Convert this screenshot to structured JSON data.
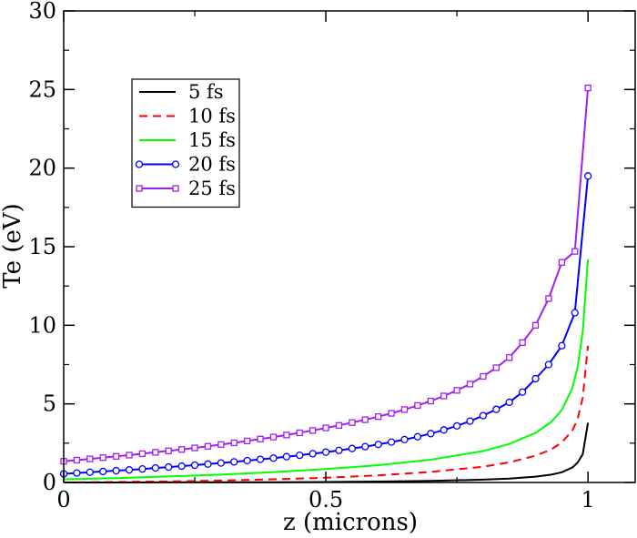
{
  "chart_data": {
    "type": "line",
    "xlabel": "z (microns)",
    "ylabel": "Te (eV)",
    "xlim": [
      0,
      1.09
    ],
    "ylim": [
      0,
      30
    ],
    "xticks": [
      {
        "value": 0,
        "label": "0"
      },
      {
        "value": 0.5,
        "label": "0.5"
      },
      {
        "value": 1,
        "label": "1"
      }
    ],
    "yticks": [
      {
        "value": 0,
        "label": "0"
      },
      {
        "value": 5,
        "label": "5"
      },
      {
        "value": 10,
        "label": "10"
      },
      {
        "value": 15,
        "label": "15"
      },
      {
        "value": 20,
        "label": "20"
      },
      {
        "value": 25,
        "label": "25"
      },
      {
        "value": 30,
        "label": "30"
      }
    ],
    "legend_position": "top-left",
    "grid": false,
    "series": [
      {
        "name": "5 fs",
        "color": "#000000",
        "dash": "solid",
        "marker": "none",
        "x": [
          0,
          0.1,
          0.2,
          0.3,
          0.4,
          0.5,
          0.6,
          0.7,
          0.8,
          0.85,
          0.9,
          0.93,
          0.95,
          0.97,
          0.98,
          0.99,
          1.0
        ],
        "y": [
          0.0,
          0.0,
          0.01,
          0.01,
          0.02,
          0.03,
          0.06,
          0.1,
          0.18,
          0.25,
          0.37,
          0.5,
          0.65,
          0.95,
          1.25,
          1.8,
          3.8
        ]
      },
      {
        "name": "10 fs",
        "color": "#ff0000",
        "dash": "dashed",
        "marker": "none",
        "x": [
          0,
          0.1,
          0.2,
          0.3,
          0.4,
          0.5,
          0.6,
          0.7,
          0.8,
          0.85,
          0.9,
          0.93,
          0.95,
          0.97,
          0.98,
          0.99,
          1.0
        ],
        "y": [
          0.0,
          0.03,
          0.07,
          0.12,
          0.2,
          0.3,
          0.45,
          0.67,
          1.0,
          1.28,
          1.7,
          2.1,
          2.55,
          3.3,
          4.0,
          5.4,
          8.7
        ]
      },
      {
        "name": "15 fs",
        "color": "#00ff00",
        "dash": "solid",
        "marker": "none",
        "x": [
          0,
          0.1,
          0.2,
          0.3,
          0.4,
          0.5,
          0.6,
          0.7,
          0.8,
          0.85,
          0.9,
          0.93,
          0.95,
          0.97,
          0.98,
          0.99,
          1.0
        ],
        "y": [
          0.2,
          0.28,
          0.38,
          0.5,
          0.66,
          0.85,
          1.1,
          1.45,
          2.0,
          2.45,
          3.15,
          3.85,
          4.6,
          6.0,
          7.3,
          9.6,
          14.2
        ]
      },
      {
        "name": "20 fs",
        "color": "#0000ff",
        "dash": "solid",
        "marker": "circle",
        "x": [
          0,
          0.025,
          0.05,
          0.075,
          0.1,
          0.125,
          0.15,
          0.175,
          0.2,
          0.225,
          0.25,
          0.275,
          0.3,
          0.325,
          0.35,
          0.375,
          0.4,
          0.425,
          0.45,
          0.475,
          0.5,
          0.525,
          0.55,
          0.575,
          0.6,
          0.625,
          0.65,
          0.675,
          0.7,
          0.725,
          0.75,
          0.775,
          0.8,
          0.825,
          0.85,
          0.875,
          0.9,
          0.925,
          0.95,
          0.975,
          1.0
        ],
        "y": [
          0.55,
          0.6,
          0.65,
          0.7,
          0.75,
          0.8,
          0.86,
          0.92,
          0.98,
          1.04,
          1.1,
          1.17,
          1.24,
          1.31,
          1.39,
          1.47,
          1.55,
          1.64,
          1.73,
          1.83,
          1.93,
          2.04,
          2.16,
          2.28,
          2.42,
          2.57,
          2.73,
          2.91,
          3.11,
          3.34,
          3.6,
          3.9,
          4.25,
          4.65,
          5.1,
          5.75,
          6.6,
          7.5,
          8.7,
          10.8,
          19.5
        ]
      },
      {
        "name": "25 fs",
        "color": "#a020f0",
        "dash": "solid",
        "marker": "square",
        "x": [
          0,
          0.025,
          0.05,
          0.075,
          0.1,
          0.125,
          0.15,
          0.175,
          0.2,
          0.225,
          0.25,
          0.275,
          0.3,
          0.325,
          0.35,
          0.375,
          0.4,
          0.425,
          0.45,
          0.475,
          0.5,
          0.525,
          0.55,
          0.575,
          0.6,
          0.625,
          0.65,
          0.675,
          0.7,
          0.725,
          0.75,
          0.775,
          0.8,
          0.825,
          0.85,
          0.875,
          0.9,
          0.925,
          0.95,
          0.975,
          1.0
        ],
        "y": [
          1.35,
          1.42,
          1.5,
          1.58,
          1.66,
          1.74,
          1.83,
          1.92,
          2.01,
          2.1,
          2.2,
          2.3,
          2.41,
          2.52,
          2.64,
          2.76,
          2.89,
          3.02,
          3.16,
          3.31,
          3.47,
          3.63,
          3.81,
          3.99,
          4.19,
          4.4,
          4.64,
          4.9,
          5.18,
          5.5,
          5.86,
          6.26,
          6.75,
          7.3,
          7.95,
          8.9,
          10.0,
          11.7,
          14.0,
          14.7,
          25.1
        ]
      }
    ]
  }
}
